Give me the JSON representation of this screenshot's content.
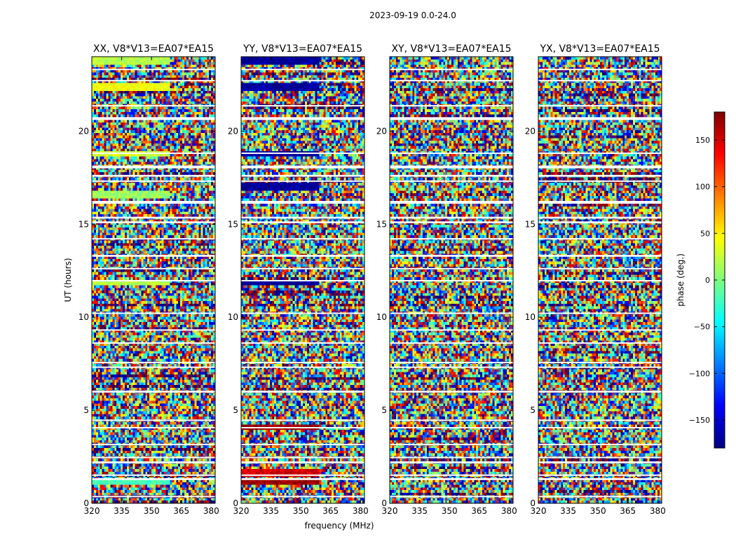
{
  "figure_title": "2023-09-19 0.0-24.0",
  "chart_data": {
    "type": "heatmap",
    "suptitle": "2023-09-19 0.0-24.0",
    "xlabel": "frequency (MHz)",
    "ylabel": "UT (hours)",
    "xlim": [
      320,
      382
    ],
    "ylim": [
      0,
      24
    ],
    "xticks": [
      320,
      335,
      350,
      365,
      380
    ],
    "yticks": [
      0,
      5,
      10,
      15,
      20
    ],
    "panels": [
      {
        "title": "XX, V8*V13=EA07*EA15",
        "pol": "XX"
      },
      {
        "title": "YY, V8*V13=EA07*EA15",
        "pol": "YY"
      },
      {
        "title": "XY, V8*V13=EA07*EA15",
        "pol": "XY"
      },
      {
        "title": "YX, V8*V13=EA07*EA15",
        "pol": "YX"
      }
    ],
    "colorbar": {
      "label": "phase (deg.)",
      "range": [
        -180,
        180
      ],
      "ticks": [
        -150,
        -100,
        -50,
        0,
        50,
        100,
        150
      ],
      "colormap": "jet",
      "cmap_stops": [
        "#00007f",
        "#0000ff",
        "#007fff",
        "#00ffff",
        "#7fff7f",
        "#ffff00",
        "#ff7f00",
        "#ff0000",
        "#7f0000"
      ]
    },
    "gaps_ut": [
      [
        0.35,
        0.4
      ],
      [
        1.25,
        1.35
      ],
      [
        1.5,
        1.55
      ],
      [
        2.15,
        2.25
      ],
      [
        2.45,
        2.5
      ],
      [
        3.15,
        3.2
      ],
      [
        4.05,
        4.1
      ],
      [
        4.45,
        4.5
      ],
      [
        5.95,
        6.05
      ],
      [
        7.3,
        7.35
      ],
      [
        7.55,
        7.6
      ],
      [
        8.6,
        8.65
      ],
      [
        9.3,
        9.35
      ],
      [
        10.2,
        10.25
      ],
      [
        11.95,
        12.0
      ],
      [
        12.6,
        12.65
      ],
      [
        13.25,
        13.35
      ],
      [
        14.2,
        14.25
      ],
      [
        15.05,
        15.15
      ],
      [
        15.3,
        15.4
      ],
      [
        16.1,
        16.25
      ],
      [
        17.3,
        17.35
      ],
      [
        17.55,
        17.65
      ],
      [
        18.0,
        18.15
      ],
      [
        18.8,
        18.85
      ],
      [
        20.6,
        20.75
      ],
      [
        21.35,
        21.4
      ],
      [
        22.7,
        22.75
      ],
      [
        23.3,
        23.35
      ]
    ],
    "bright_bands": [
      {
        "pol": "XX",
        "ut": [
          23.7,
          23.9
        ],
        "phase": 20
      },
      {
        "pol": "XX",
        "ut": [
          22.2,
          22.5
        ],
        "phase": 40
      },
      {
        "pol": "XX",
        "ut": [
          18.7,
          18.9
        ],
        "phase": 30
      },
      {
        "pol": "XX",
        "ut": [
          16.5,
          16.7
        ],
        "phase": 10
      },
      {
        "pol": "XX",
        "ut": [
          11.75,
          11.95
        ],
        "phase": 20
      },
      {
        "pol": "XX",
        "ut": [
          1.0,
          1.2
        ],
        "phase": -20
      },
      {
        "pol": "YY",
        "ut": [
          23.7,
          23.9
        ],
        "phase": -170
      },
      {
        "pol": "YY",
        "ut": [
          22.2,
          22.5
        ],
        "phase": -170
      },
      {
        "pol": "YY",
        "ut": [
          18.7,
          18.9
        ],
        "phase": -170
      },
      {
        "pol": "YY",
        "ut": [
          16.9,
          17.2
        ],
        "phase": -170
      },
      {
        "pol": "YY",
        "ut": [
          11.75,
          11.95
        ],
        "phase": -170
      },
      {
        "pol": "YY",
        "ut": [
          4.0,
          4.2
        ],
        "phase": 170
      },
      {
        "pol": "YY",
        "ut": [
          1.5,
          1.7
        ],
        "phase": 150
      },
      {
        "pol": "YY",
        "ut": [
          1.0,
          1.2
        ],
        "phase": 170
      }
    ]
  }
}
